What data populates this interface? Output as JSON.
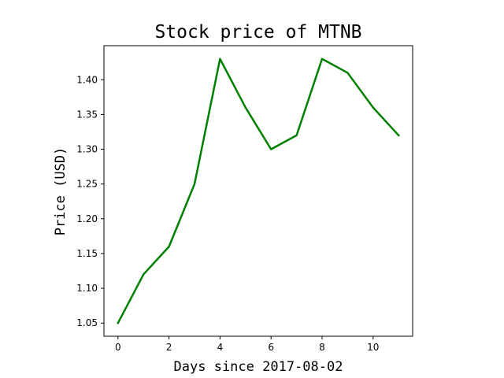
{
  "chart_data": {
    "type": "line",
    "title": "Stock price of MTNB",
    "xlabel": "Days since 2017-08-02",
    "ylabel": "Price (USD)",
    "xlim": [
      -0.55,
      11.55
    ],
    "ylim": [
      1.031,
      1.449
    ],
    "xticks": [
      0,
      2,
      4,
      6,
      8,
      10
    ],
    "yticks": [
      1.05,
      1.1,
      1.15,
      1.2,
      1.25,
      1.3,
      1.35,
      1.4
    ],
    "ytick_labels": [
      "1.05",
      "1.10",
      "1.15",
      "1.20",
      "1.25",
      "1.30",
      "1.35",
      "1.40"
    ],
    "grid": false,
    "series": [
      {
        "color": "#008000",
        "x": [
          0,
          1,
          2,
          3,
          4,
          5,
          6,
          7,
          8,
          9,
          10,
          11
        ],
        "y": [
          1.05,
          1.12,
          1.16,
          1.25,
          1.43,
          1.36,
          1.3,
          1.32,
          1.43,
          1.41,
          1.36,
          1.32
        ]
      }
    ]
  }
}
